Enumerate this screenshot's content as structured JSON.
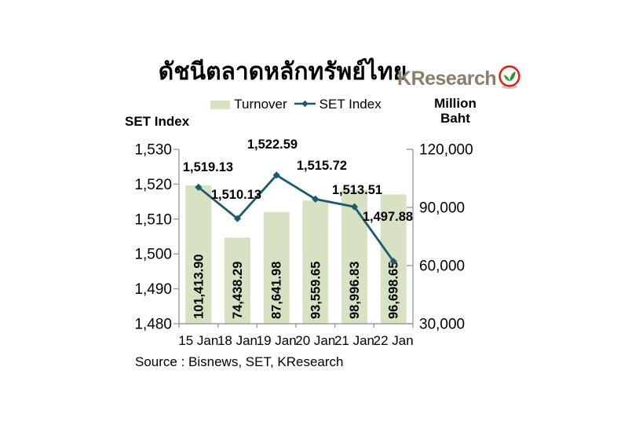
{
  "header": {
    "title": "ดัชนีตลาดหลักทรัพย์ไทย",
    "logo_text": "KResearch"
  },
  "legend": {
    "items": [
      {
        "label": "Turnover",
        "marker": "bar-swatch"
      },
      {
        "label": "SET Index",
        "marker": "line-diamond"
      }
    ]
  },
  "footer": {
    "source": "Source : Bisnews, SET, KResearch"
  },
  "chart_data": {
    "type": "bar+line combo",
    "categories": [
      "15 Jan",
      "18 Jan",
      "19 Jan",
      "20 Jan",
      "21 Jan",
      "22 Jan"
    ],
    "series": [
      {
        "name": "Turnover",
        "type": "bar",
        "axis": "right",
        "values": [
          101413.9,
          74438.29,
          87641.98,
          93559.65,
          98996.83,
          96698.65
        ],
        "labels": [
          "101,413.90",
          "74,438.29",
          "87,641.98",
          "93,559.65",
          "98,996.83",
          "96,698.65"
        ]
      },
      {
        "name": "SET Index",
        "type": "line",
        "axis": "left",
        "values": [
          1519.13,
          1510.13,
          1522.59,
          1515.72,
          1513.51,
          1497.88
        ],
        "labels": [
          "1,519.13",
          "1,510.13",
          "1,522.59",
          "1,515.72",
          "1,513.51",
          "1,497.88"
        ]
      }
    ],
    "left_axis": {
      "title": "SET Index",
      "min": 1480,
      "max": 1530,
      "step": 10,
      "ticks": [
        "1,530",
        "1,520",
        "1,510",
        "1,500",
        "1,490",
        "1,480"
      ]
    },
    "right_axis": {
      "title": "Million Baht",
      "min": 30000,
      "max": 120000,
      "step": 30000,
      "ticks": [
        "120,000",
        "90,000",
        "60,000",
        "30,000"
      ]
    },
    "colors": {
      "bar_fill": "#d6e2c2",
      "line": "#1d5a6e",
      "axis": "#9c9c9c",
      "label_text": "#000000",
      "logo_text": "#8a7d6c",
      "logo_ring": "#dd2418",
      "logo_sprout": "#3ea03e"
    },
    "grid": false,
    "legend_position": "top"
  }
}
